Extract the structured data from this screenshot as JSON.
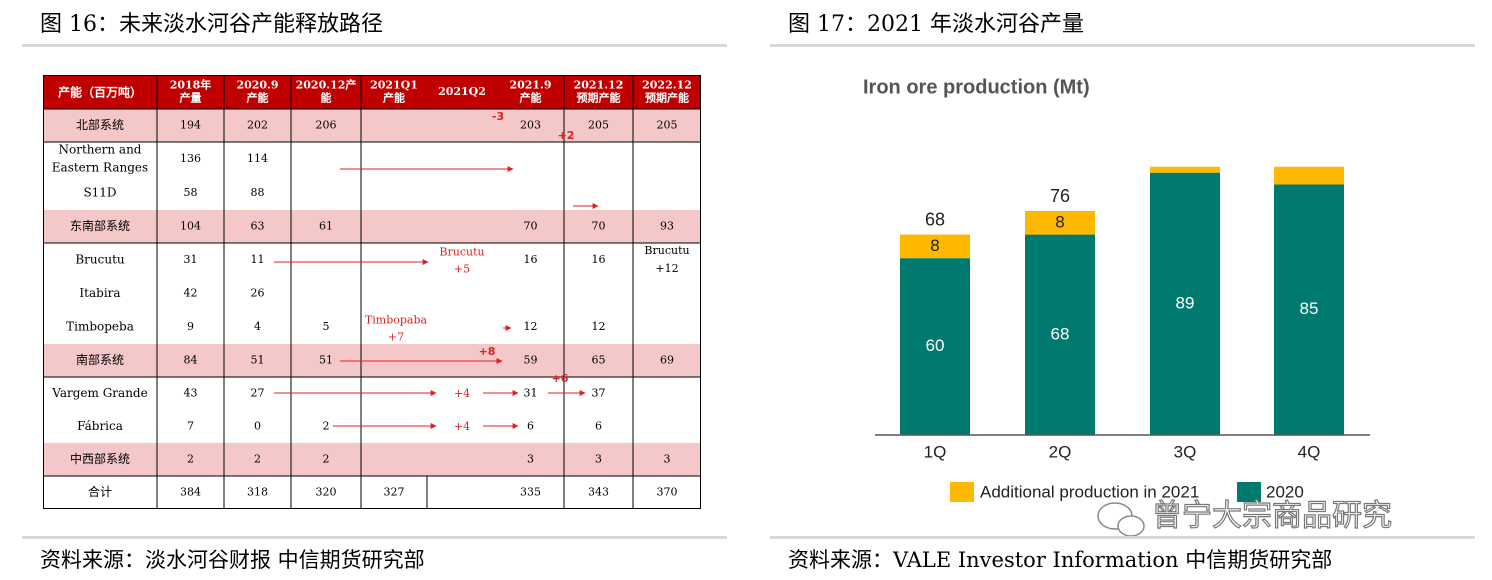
{
  "left": {
    "figure_title": "图 16：未来淡水河谷产能释放路径",
    "source": "资料来源：淡水河谷财报  中信期货研究部",
    "table": {
      "header": {
        "c0": "产能（百万吨）",
        "c1": [
          "2018年",
          "产量"
        ],
        "c2": [
          "2020.9",
          "产能"
        ],
        "c3": [
          "2020.12产",
          "能"
        ],
        "c4": [
          "2021Q1",
          "产能"
        ],
        "c5": [
          "2021Q2"
        ],
        "c6": [
          "2021.9",
          "产能"
        ],
        "c7": [
          "2021.12",
          "预期产能"
        ],
        "c8": [
          "2022.12",
          "预期产能"
        ]
      },
      "rows": [
        {
          "label": "北部系统",
          "group": true,
          "c1": "194",
          "c2": "202",
          "c3": "206",
          "c4": "",
          "c5": "",
          "c6": "203",
          "c7": "205",
          "c8": "205"
        },
        {
          "label": "Northern and|Eastern Ranges",
          "group": false,
          "c1": "136",
          "c2": "114",
          "c3": "",
          "c4": "",
          "c5": "",
          "c6": "",
          "c7": "",
          "c8": ""
        },
        {
          "label": "S11D",
          "group": false,
          "c1": "58",
          "c2": "88",
          "c3": "",
          "c4": "",
          "c5": "",
          "c6": "",
          "c7": "",
          "c8": ""
        },
        {
          "label": "东南部系统",
          "group": true,
          "c1": "104",
          "c2": "63",
          "c3": "61",
          "c4": "",
          "c5": "",
          "c6": "70",
          "c7": "70",
          "c8": "93"
        },
        {
          "label": "Brucutu",
          "group": false,
          "c1": "31",
          "c2": "11",
          "c3": "",
          "c4": "",
          "c5": "",
          "c6": "16",
          "c7": "16",
          "c8": "Brucutu|+12"
        },
        {
          "label": "Itabira",
          "group": false,
          "c1": "42",
          "c2": "26",
          "c3": "",
          "c4": "",
          "c5": "",
          "c6": "",
          "c7": "",
          "c8": ""
        },
        {
          "label": "Timbopeba",
          "group": false,
          "c1": "9",
          "c2": "4",
          "c3": "5",
          "c4": "",
          "c5": "",
          "c6": "12",
          "c7": "12",
          "c8": ""
        },
        {
          "label": "南部系统",
          "group": true,
          "c1": "84",
          "c2": "51",
          "c3": "51",
          "c4": "",
          "c5": "",
          "c6": "59",
          "c7": "65",
          "c8": "69"
        },
        {
          "label": "Vargem Grande",
          "group": false,
          "c1": "43",
          "c2": "27",
          "c3": "",
          "c4": "",
          "c5": "",
          "c6": "31",
          "c7": "37",
          "c8": ""
        },
        {
          "label": "Fábrica",
          "group": false,
          "c1": "7",
          "c2": "0",
          "c3": "2",
          "c4": "",
          "c5": "",
          "c6": "6",
          "c7": "6",
          "c8": ""
        },
        {
          "label": "中西部系统",
          "group": true,
          "c1": "2",
          "c2": "2",
          "c3": "2",
          "c4": "",
          "c5": "",
          "c6": "3",
          "c7": "3",
          "c8": "3"
        },
        {
          "label": "合计",
          "group": false,
          "total": true,
          "c1": "384",
          "c2": "318",
          "c3": "320",
          "c4": "327",
          "c5": "",
          "c6": "335",
          "c7": "343",
          "c8": "370"
        }
      ],
      "annotations": [
        {
          "row": 0,
          "text": "-3",
          "bold": true
        },
        {
          "row": 0,
          "text": "+2",
          "bold": true
        },
        {
          "row": 4,
          "text": "Brucutu|+5",
          "bold": false
        },
        {
          "row": 6,
          "text": "Timbopaba|+7",
          "bold": false
        },
        {
          "row": 7,
          "text": "+8",
          "bold": true
        },
        {
          "row": 8,
          "text": "+6",
          "bold": true
        },
        {
          "row": 8,
          "text": "+4",
          "bold": false
        },
        {
          "row": 9,
          "text": "+4",
          "bold": false
        }
      ]
    },
    "colors": {
      "header_bg": "#c00000",
      "group_bg": "#f4c7c9",
      "arrow": "#e02020"
    }
  },
  "right": {
    "figure_title": "图 17：2021 年淡水河谷产量",
    "source": "资料来源：VALE Investor Information  中信期货研究部",
    "watermark": "曾宁大宗商品研究",
    "chart_data": {
      "type": "bar",
      "stacked": true,
      "title": "Iron ore production (Mt)",
      "categories": [
        "1Q",
        "2Q",
        "3Q",
        "4Q"
      ],
      "series": [
        {
          "name": "2020",
          "values": [
            60,
            68,
            89,
            85
          ],
          "color": "#007a6e",
          "labels": [
            "60",
            "68",
            "89",
            "85"
          ]
        },
        {
          "name": "Additional production in 2021",
          "values": [
            8,
            8,
            2,
            6
          ],
          "color": "#ffb800",
          "labels": [
            "8",
            "8",
            "",
            ""
          ]
        }
      ],
      "totals": [
        "68",
        "76",
        "",
        ""
      ],
      "ylim": [
        0,
        95
      ],
      "legend": "bottom",
      "grid": false
    }
  }
}
